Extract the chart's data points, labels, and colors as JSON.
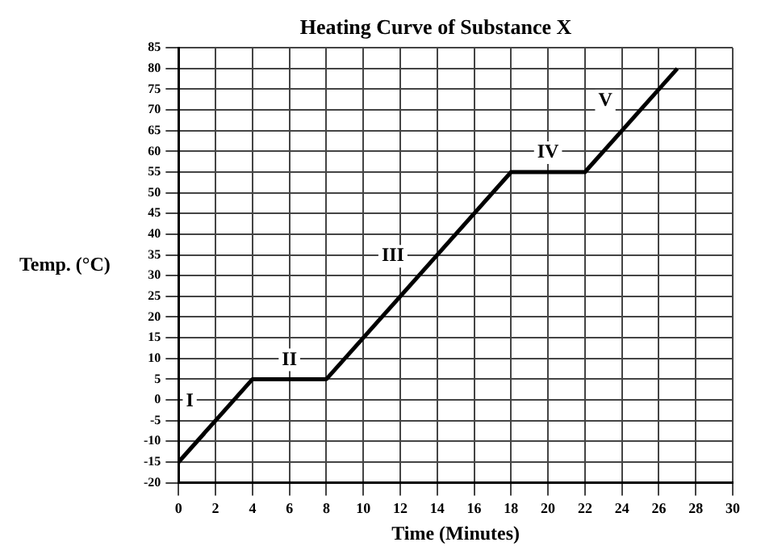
{
  "chart_data": {
    "type": "line",
    "title": "Heating Curve of Substance X",
    "xlabel": "Time (Minutes)",
    "ylabel": "Temp. (°C)",
    "x": [
      0,
      4,
      8,
      18,
      22,
      27
    ],
    "series": [
      {
        "color": "#000000",
        "values": [
          -15,
          5,
          5,
          55,
          55,
          80
        ]
      }
    ],
    "xlim": [
      0,
      30
    ],
    "xticks": [
      0,
      2,
      4,
      6,
      8,
      10,
      12,
      14,
      16,
      18,
      20,
      22,
      24,
      26,
      28,
      30
    ],
    "ylim": [
      -20,
      85
    ],
    "yticks": [
      -20,
      -15,
      -10,
      -5,
      0,
      5,
      10,
      15,
      20,
      25,
      30,
      35,
      40,
      45,
      50,
      55,
      60,
      65,
      70,
      75,
      80,
      85
    ],
    "grid": true,
    "legend": false,
    "marker": "none",
    "line_style": "solid",
    "annotations": [
      "I",
      "II",
      "III",
      "IV",
      "V"
    ]
  }
}
